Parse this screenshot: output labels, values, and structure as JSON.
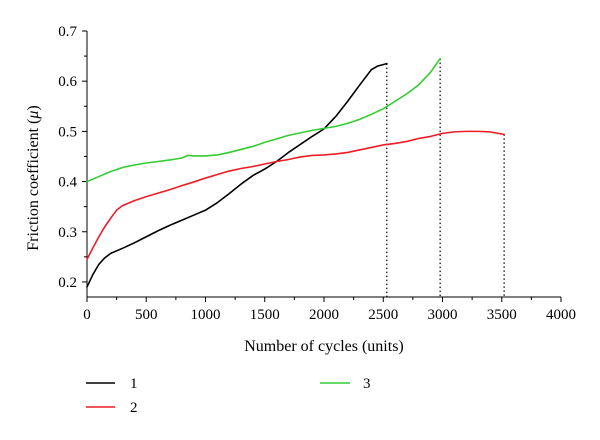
{
  "chart_data": {
    "type": "line",
    "title": "",
    "xlabel": "Number of cycles (units)",
    "ylabel_prefix": "Friction coefficient (",
    "ylabel_symbol": "μ",
    "ylabel_suffix": ")",
    "xlim": [
      0,
      4000
    ],
    "ylim": [
      0.17,
      0.7
    ],
    "x_ticks": [
      0,
      500,
      1000,
      1500,
      2000,
      2500,
      3000,
      3500,
      4000
    ],
    "y_ticks": [
      0.2,
      0.3,
      0.4,
      0.5,
      0.6,
      0.7
    ],
    "x_tick_labels": [
      "0",
      "500",
      "1000",
      "1500",
      "2000",
      "2500",
      "3000",
      "3500",
      "4000"
    ],
    "y_tick_labels": [
      "0.2",
      "0.3",
      "0.4",
      "0.5",
      "0.6",
      "0.7"
    ],
    "grid": false,
    "legend_position": "bottom",
    "series": [
      {
        "name": "1",
        "color": "#000000",
        "end_marker": true,
        "points": [
          [
            0,
            0.19
          ],
          [
            50,
            0.215
          ],
          [
            100,
            0.235
          ],
          [
            150,
            0.248
          ],
          [
            200,
            0.257
          ],
          [
            300,
            0.267
          ],
          [
            400,
            0.278
          ],
          [
            500,
            0.29
          ],
          [
            600,
            0.302
          ],
          [
            700,
            0.313
          ],
          [
            800,
            0.323
          ],
          [
            900,
            0.333
          ],
          [
            1000,
            0.343
          ],
          [
            1100,
            0.358
          ],
          [
            1200,
            0.376
          ],
          [
            1300,
            0.395
          ],
          [
            1400,
            0.412
          ],
          [
            1500,
            0.425
          ],
          [
            1600,
            0.44
          ],
          [
            1700,
            0.458
          ],
          [
            1800,
            0.474
          ],
          [
            1900,
            0.49
          ],
          [
            2000,
            0.505
          ],
          [
            2100,
            0.53
          ],
          [
            2200,
            0.56
          ],
          [
            2300,
            0.592
          ],
          [
            2400,
            0.623
          ],
          [
            2450,
            0.63
          ],
          [
            2530,
            0.635
          ]
        ]
      },
      {
        "name": "2",
        "color": "#ee1c25",
        "end_marker": true,
        "points": [
          [
            0,
            0.245
          ],
          [
            50,
            0.268
          ],
          [
            100,
            0.29
          ],
          [
            150,
            0.31
          ],
          [
            200,
            0.327
          ],
          [
            250,
            0.343
          ],
          [
            300,
            0.352
          ],
          [
            400,
            0.362
          ],
          [
            500,
            0.37
          ],
          [
            600,
            0.377
          ],
          [
            700,
            0.384
          ],
          [
            800,
            0.392
          ],
          [
            900,
            0.399
          ],
          [
            1000,
            0.407
          ],
          [
            1100,
            0.414
          ],
          [
            1200,
            0.421
          ],
          [
            1300,
            0.426
          ],
          [
            1400,
            0.43
          ],
          [
            1500,
            0.435
          ],
          [
            1600,
            0.44
          ],
          [
            1700,
            0.444
          ],
          [
            1800,
            0.449
          ],
          [
            1900,
            0.452
          ],
          [
            2000,
            0.453
          ],
          [
            2100,
            0.455
          ],
          [
            2200,
            0.458
          ],
          [
            2300,
            0.463
          ],
          [
            2400,
            0.468
          ],
          [
            2500,
            0.473
          ],
          [
            2600,
            0.476
          ],
          [
            2700,
            0.48
          ],
          [
            2800,
            0.486
          ],
          [
            2900,
            0.49
          ],
          [
            3000,
            0.496
          ],
          [
            3100,
            0.499
          ],
          [
            3200,
            0.5
          ],
          [
            3300,
            0.5
          ],
          [
            3400,
            0.499
          ],
          [
            3520,
            0.494
          ]
        ]
      },
      {
        "name": "3",
        "color": "#33cc33",
        "end_marker": true,
        "points": [
          [
            0,
            0.4
          ],
          [
            100,
            0.41
          ],
          [
            200,
            0.42
          ],
          [
            300,
            0.428
          ],
          [
            400,
            0.433
          ],
          [
            500,
            0.437
          ],
          [
            600,
            0.44
          ],
          [
            700,
            0.443
          ],
          [
            800,
            0.447
          ],
          [
            850,
            0.452
          ],
          [
            900,
            0.451
          ],
          [
            1000,
            0.451
          ],
          [
            1100,
            0.453
          ],
          [
            1200,
            0.458
          ],
          [
            1300,
            0.464
          ],
          [
            1400,
            0.47
          ],
          [
            1500,
            0.478
          ],
          [
            1600,
            0.485
          ],
          [
            1700,
            0.492
          ],
          [
            1800,
            0.497
          ],
          [
            1900,
            0.502
          ],
          [
            2000,
            0.506
          ],
          [
            2100,
            0.51
          ],
          [
            2200,
            0.516
          ],
          [
            2300,
            0.524
          ],
          [
            2400,
            0.534
          ],
          [
            2500,
            0.545
          ],
          [
            2600,
            0.56
          ],
          [
            2700,
            0.575
          ],
          [
            2800,
            0.593
          ],
          [
            2900,
            0.618
          ],
          [
            2980,
            0.645
          ]
        ]
      }
    ]
  }
}
